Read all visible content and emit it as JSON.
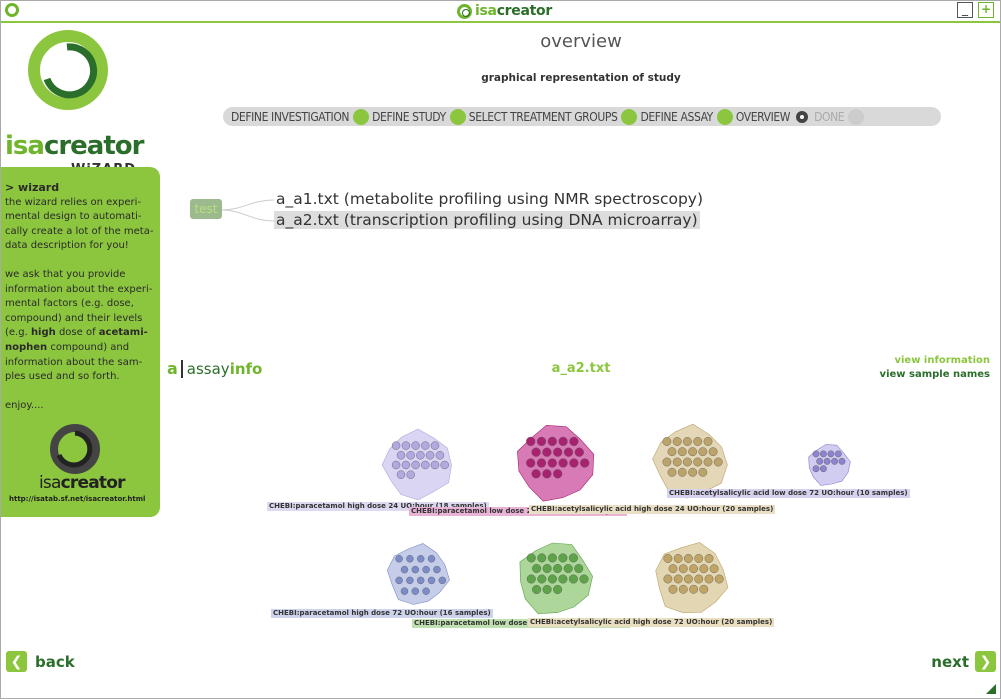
{
  "window": {
    "app_name_light": "isa",
    "app_name_dark": "creator",
    "minimize_label": "_",
    "maximize_label": "+"
  },
  "logo": {
    "word_light": "isa",
    "word_dark": "creator",
    "sub": "WiZARD"
  },
  "sidebar": {
    "title": "> wizard",
    "intro": "the wizard relies on experi-mental design to automati-cally create a lot of the meta-data description for you!",
    "para2_a": "we ask that you provide information about the experi-mental factors (e.g. dose, compound) and their levels (e.g. ",
    "para2_high": "high",
    "para2_b": " dose of ",
    "para2_compound": "acetami-nophen",
    "para2_c": " compound) and information about the sam-ples used and so forth.",
    "enjoy": "enjoy....",
    "logo_light": "isa",
    "logo_dark": "creator",
    "url": "http://isatab.sf.net/isacreator.html"
  },
  "header": {
    "title": "overview",
    "subtitle": "graphical representation of study"
  },
  "steps": [
    {
      "label": "DEFINE INVESTIGATION",
      "state": "done"
    },
    {
      "label": "DEFINE STUDY",
      "state": "done"
    },
    {
      "label": "SELECT TREATMENT GROUPS",
      "state": "done"
    },
    {
      "label": "DEFINE ASSAY",
      "state": "done"
    },
    {
      "label": "OVERVIEW",
      "state": "current"
    },
    {
      "label": "DONE",
      "state": "disabled"
    }
  ],
  "study": {
    "name": "test",
    "assays": [
      "a_a1.txt (metabolite profiling using NMR spectroscopy)",
      "a_a2.txt (transcription profiling using DNA microarray)"
    ]
  },
  "assay_info": {
    "logo_a": "a",
    "logo_assay": "assay",
    "logo_info": "info",
    "name": "a_a2.txt",
    "view_information": "view information",
    "view_sample_names": "view sample names"
  },
  "groups": [
    {
      "label": "CHEBI:paracetamol high dose 24 UO:hour (18 samples)",
      "samples": 18,
      "fill": "#d9d5f2",
      "dot": "#b3a8e0",
      "label_bg": "#dcd9f0"
    },
    {
      "label": "CHEBI:paracetamol low dose 24 UO:hour (19 samples)",
      "samples": 19,
      "fill": "#d77ab6",
      "dot": "#a8226f",
      "label_bg": "#e9b3d6"
    },
    {
      "label": "CHEBI:acetylsalicylic acid high dose 24 UO:hour (20 samples)",
      "samples": 20,
      "fill": "#e3d7b8",
      "dot": "#bca36a",
      "label_bg": "#e9dfc4"
    },
    {
      "label": "CHEBI:acetylsalicylic acid low dose 72 UO:hour (10 samples)",
      "samples": 10,
      "fill": "#d1cdf0",
      "dot": "#8d83cf",
      "label_bg": "#d6d2ee"
    },
    {
      "label": "CHEBI:paracetamol high dose 72 UO:hour (16 samples)",
      "samples": 16,
      "fill": "#c6cde8",
      "dot": "#7c8cc9",
      "label_bg": "#ccd3ea"
    },
    {
      "label": "CHEBI:paracetamol low dose 72 UO:hour (19 samples)",
      "samples": 19,
      "fill": "#acd69a",
      "dot": "#5ea34a",
      "label_bg": "#bfe0b0"
    },
    {
      "label": "CHEBI:acetylsalicylic acid high dose 72 UO:hour (20 samples)",
      "samples": 20,
      "fill": "#e3d6b2",
      "dot": "#bfa466",
      "label_bg": "#e9dec0"
    }
  ],
  "nav": {
    "back": "back",
    "next": "next"
  },
  "colors": {
    "accent": "#8cc63f",
    "dark_green": "#2b6e2b"
  }
}
